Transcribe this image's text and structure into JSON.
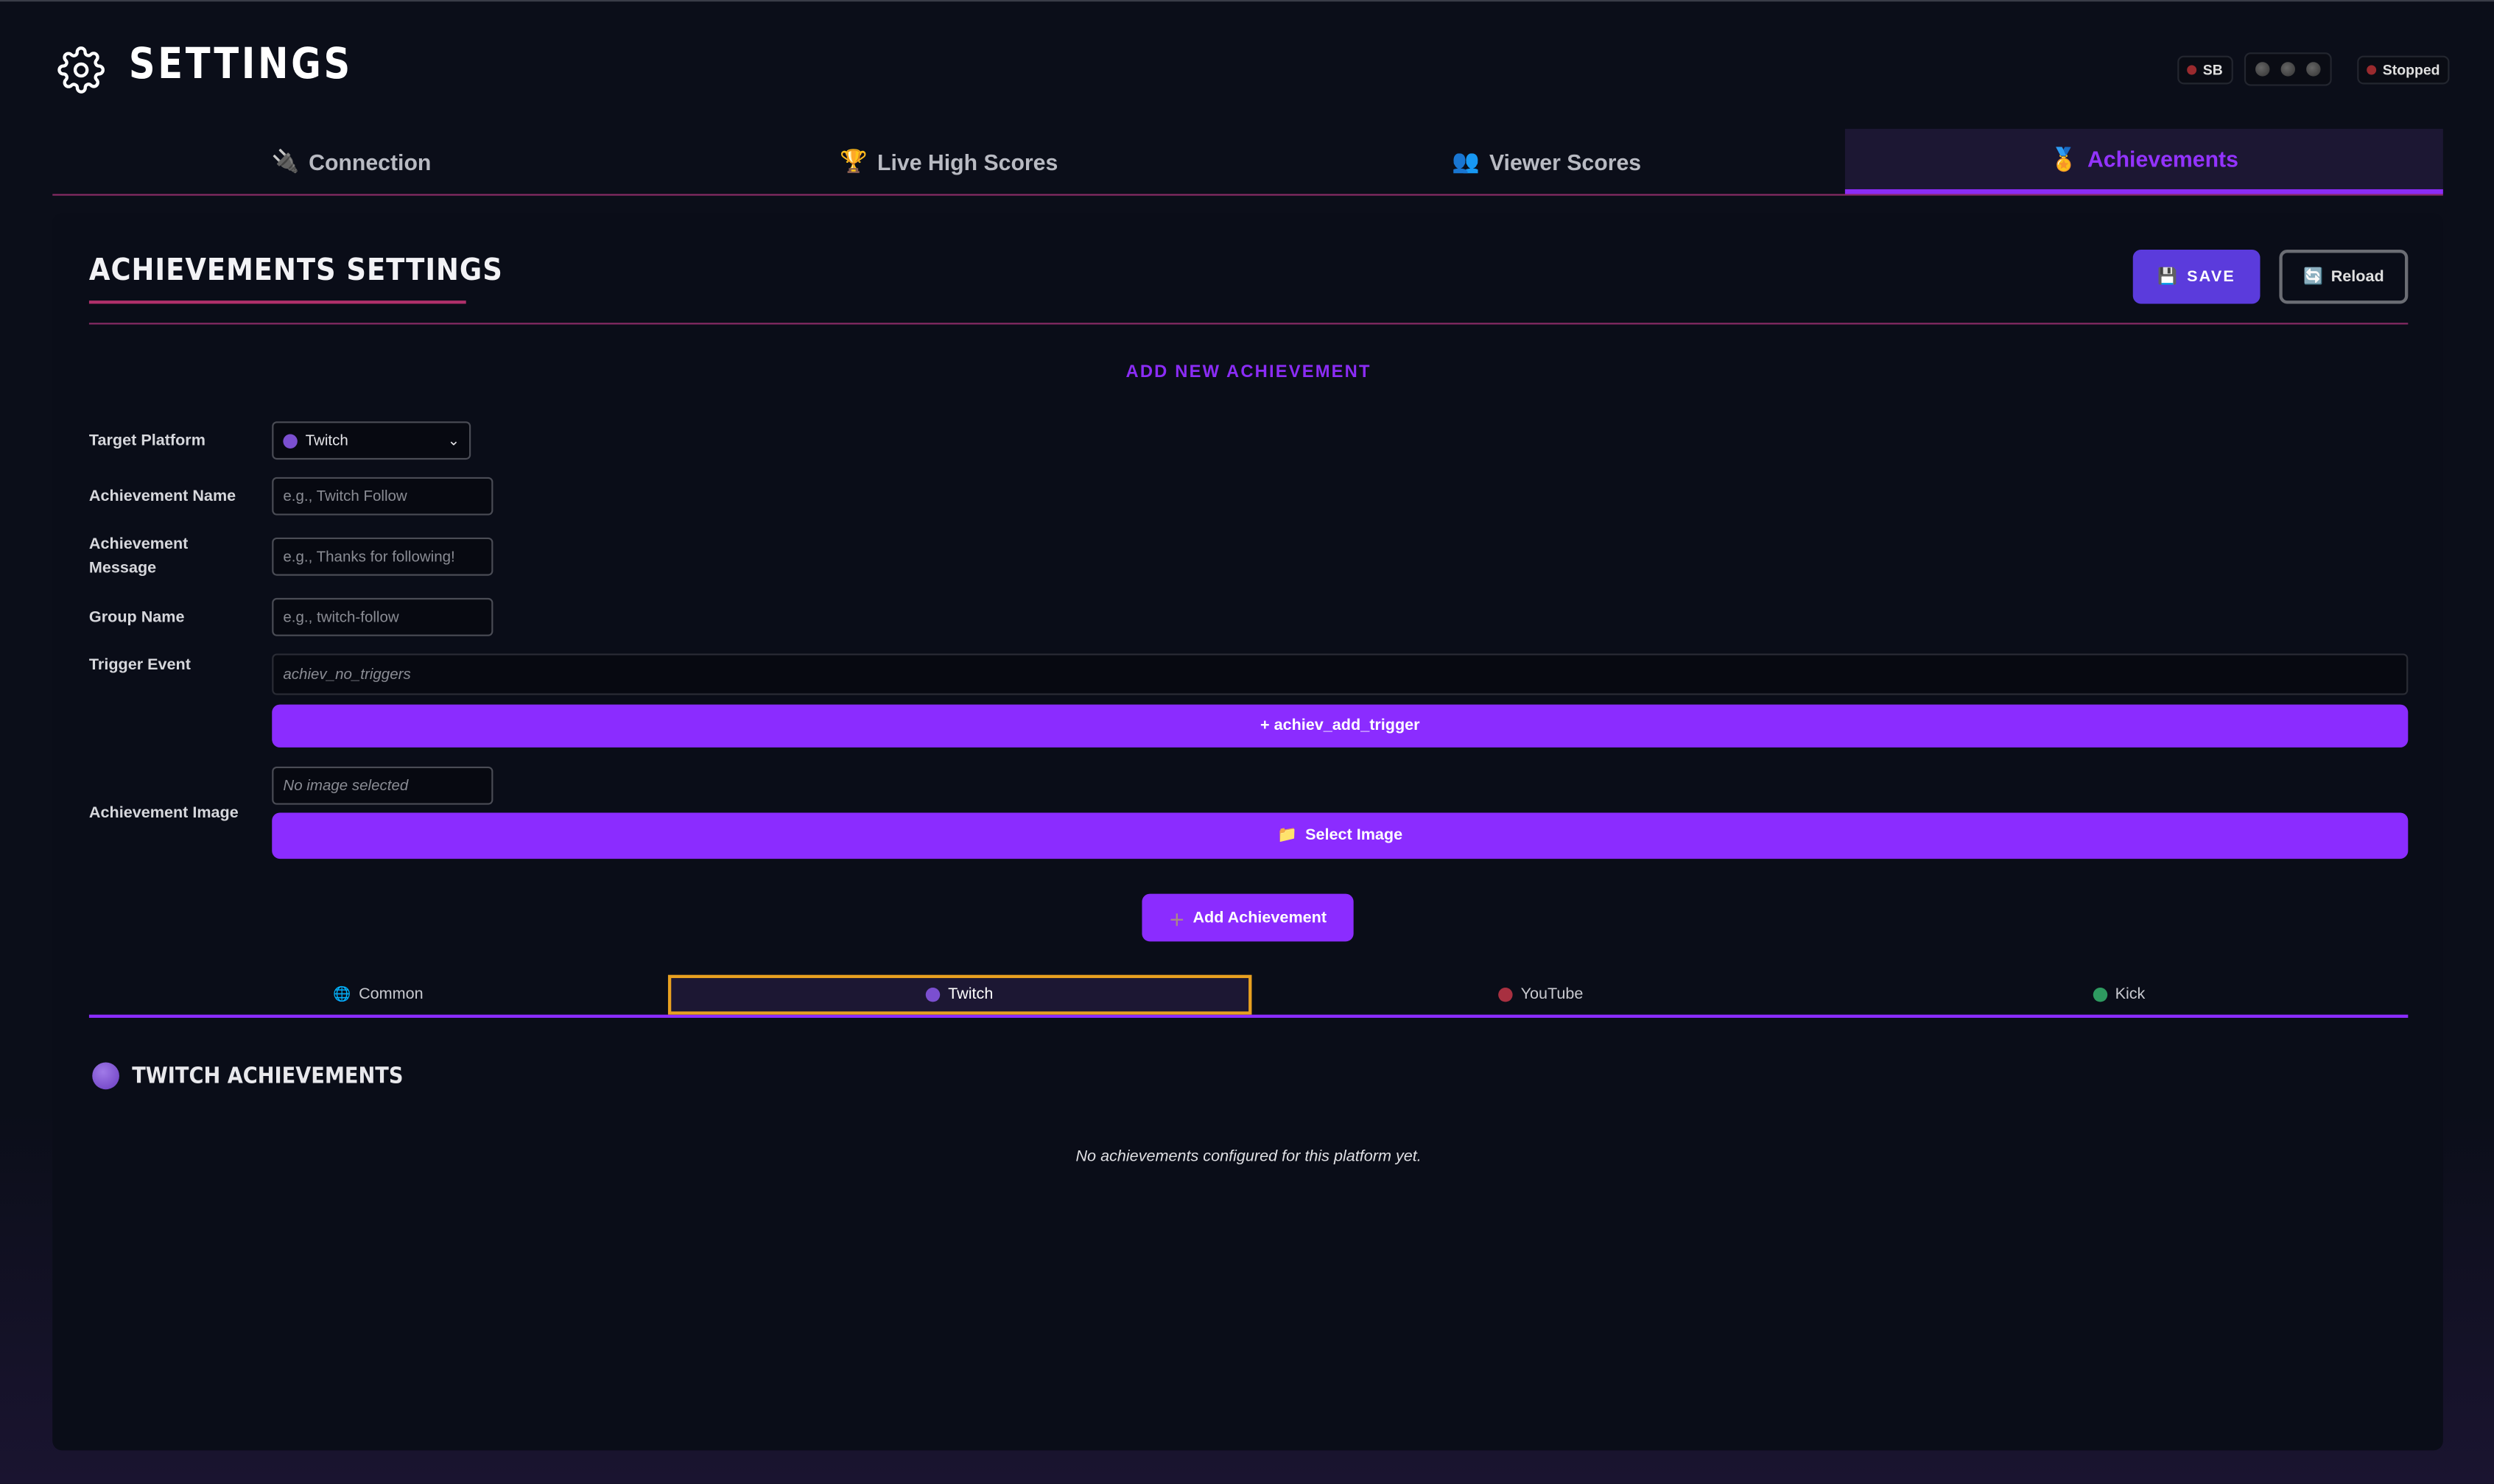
{
  "header": {
    "title": "SETTINGS",
    "icon": "gear-icon",
    "status": {
      "sb_label": "SB",
      "state_label": "Stopped"
    }
  },
  "tabs": [
    {
      "label": "Connection",
      "icon": "plug-icon",
      "active": false
    },
    {
      "label": "Live High Scores",
      "icon": "trophy-icon",
      "active": false
    },
    {
      "label": "Viewer Scores",
      "icon": "users-icon",
      "active": false
    },
    {
      "label": "Achievements",
      "icon": "medal-icon",
      "active": true
    }
  ],
  "section": {
    "title": "ACHIEVEMENTS SETTINGS",
    "save_label": "SAVE",
    "reload_label": "Reload"
  },
  "form": {
    "heading": "ADD NEW ACHIEVEMENT",
    "target_platform_label": "Target Platform",
    "target_platform_value": "Twitch",
    "name_label": "Achievement Name",
    "name_placeholder": "e.g., Twitch Follow",
    "message_label_1": "Achievement",
    "message_label_2": "Message",
    "message_placeholder": "e.g., Thanks for following!",
    "group_label": "Group Name",
    "group_placeholder": "e.g., twitch-follow",
    "trigger_label": "Trigger Event",
    "trigger_value": "achiev_no_triggers",
    "add_trigger_label": "+ achiev_add_trigger",
    "image_label": "Achievement Image",
    "image_value": "No image selected",
    "select_image_label": "Select Image",
    "add_label": "Add Achievement"
  },
  "platform_tabs": [
    {
      "label": "Common",
      "color": "#2a7fb5",
      "active": false
    },
    {
      "label": "Twitch",
      "color": "#7b4fd0",
      "active": true
    },
    {
      "label": "YouTube",
      "color": "#a83040",
      "active": false
    },
    {
      "label": "Kick",
      "color": "#2e9a60",
      "active": false
    }
  ],
  "list": {
    "title": "TWITCH ACHIEVEMENTS",
    "empty": "No achievements configured for this platform yet."
  },
  "colors": {
    "accent": "#8b2cff",
    "save": "#5b3bdc",
    "divider": "#8a2b66",
    "active_outline": "#e8a020"
  }
}
